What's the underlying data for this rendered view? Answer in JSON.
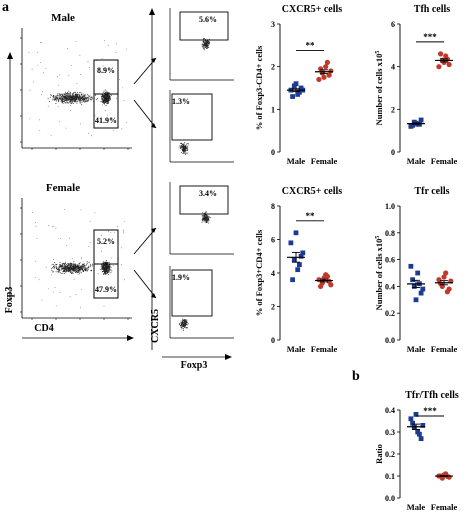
{
  "panel_a": {
    "letter": "a",
    "axis_foxp3": "Foxp3",
    "axis_cd4": "CD4",
    "axis_cxcr5": "CXCR5",
    "axis_foxp3_bottom": "Foxp3",
    "male": {
      "title": "Male",
      "gate_upper": "8.9%",
      "gate_lower": "41.9%",
      "cxcr5_high": "5.6%",
      "cxcr5_low": "1.3%"
    },
    "female": {
      "title": "Female",
      "gate_upper": "5.2%",
      "gate_lower": "47.9%",
      "cxcr5_high": "3.4%",
      "cxcr5_low": "1.9%"
    }
  },
  "panel_b": {
    "letter": "b"
  },
  "chart_data": [
    {
      "type": "scatter",
      "title": "CXCR5+ cells",
      "ylabel": "% of Foxp3-CD4+ cells",
      "categories": [
        "Male",
        "Female"
      ],
      "ylim": [
        0,
        3
      ],
      "yticks": [
        "0",
        "1",
        "2",
        "3"
      ],
      "significance": "**",
      "series": [
        {
          "values": [
            1.45,
            1.55,
            1.35,
            1.5,
            1.3,
            1.6,
            1.4,
            1.45
          ],
          "color": "#1f3a93"
        },
        {
          "values": [
            1.7,
            1.85,
            2.0,
            1.8,
            1.95,
            1.75,
            2.1,
            1.9
          ],
          "color": "#c0392b"
        }
      ]
    },
    {
      "type": "scatter",
      "title": "Tfh cells",
      "ylabel": "Number of cells x10",
      "ylabel_sup": "5",
      "categories": [
        "Male",
        "Female"
      ],
      "ylim": [
        0,
        6
      ],
      "yticks": [
        "0",
        "2",
        "4",
        "6"
      ],
      "significance": "***",
      "series": [
        {
          "values": [
            1.2,
            1.4,
            1.3,
            1.5,
            1.25,
            1.35,
            1.3
          ],
          "color": "#1f3a93"
        },
        {
          "values": [
            4.0,
            4.3,
            4.5,
            4.1,
            4.6,
            4.2,
            4.35
          ],
          "color": "#c0392b"
        }
      ]
    },
    {
      "type": "scatter",
      "title": "CXCR5+ cells",
      "ylabel": "% of Foxp3+CD4+ cells",
      "categories": [
        "Male",
        "Female"
      ],
      "ylim": [
        0,
        8
      ],
      "yticks": [
        "0",
        "2",
        "4",
        "6",
        "8"
      ],
      "significance": "**",
      "series": [
        {
          "values": [
            5.8,
            4.8,
            4.2,
            5.0,
            3.6,
            6.4,
            4.5,
            5.2
          ],
          "color": "#1f3a93"
        },
        {
          "values": [
            3.6,
            3.4,
            3.9,
            3.5,
            3.2,
            3.7,
            3.8,
            3.3
          ],
          "color": "#c0392b"
        }
      ]
    },
    {
      "type": "scatter",
      "title": "Tfr cells",
      "ylabel": "Number of cells x10",
      "ylabel_sup": "5",
      "categories": [
        "Male",
        "Female"
      ],
      "ylim": [
        0,
        1.0
      ],
      "yticks": [
        "0.0",
        "0.2",
        "0.4",
        "0.6",
        "0.8",
        "1.0"
      ],
      "significance": "",
      "series": [
        {
          "values": [
            0.55,
            0.4,
            0.5,
            0.35,
            0.45,
            0.3,
            0.42,
            0.38
          ],
          "color": "#1f3a93"
        },
        {
          "values": [
            0.45,
            0.4,
            0.5,
            0.38,
            0.42,
            0.47,
            0.36,
            0.44
          ],
          "color": "#c0392b"
        }
      ]
    },
    {
      "type": "scatter",
      "title": "Tfr/Tfh cells",
      "ylabel": "Ratio",
      "categories": [
        "Male",
        "Female"
      ],
      "ylim": [
        0,
        0.4
      ],
      "yticks": [
        "0.0",
        "0.1",
        "0.2",
        "0.3",
        "0.4"
      ],
      "significance": "***",
      "series": [
        {
          "values": [
            0.36,
            0.32,
            0.3,
            0.27,
            0.34,
            0.38,
            0.29,
            0.33
          ],
          "color": "#1f3a93"
        },
        {
          "values": [
            0.1,
            0.09,
            0.11,
            0.095,
            0.1,
            0.105,
            0.098
          ],
          "color": "#c0392b"
        }
      ]
    }
  ]
}
